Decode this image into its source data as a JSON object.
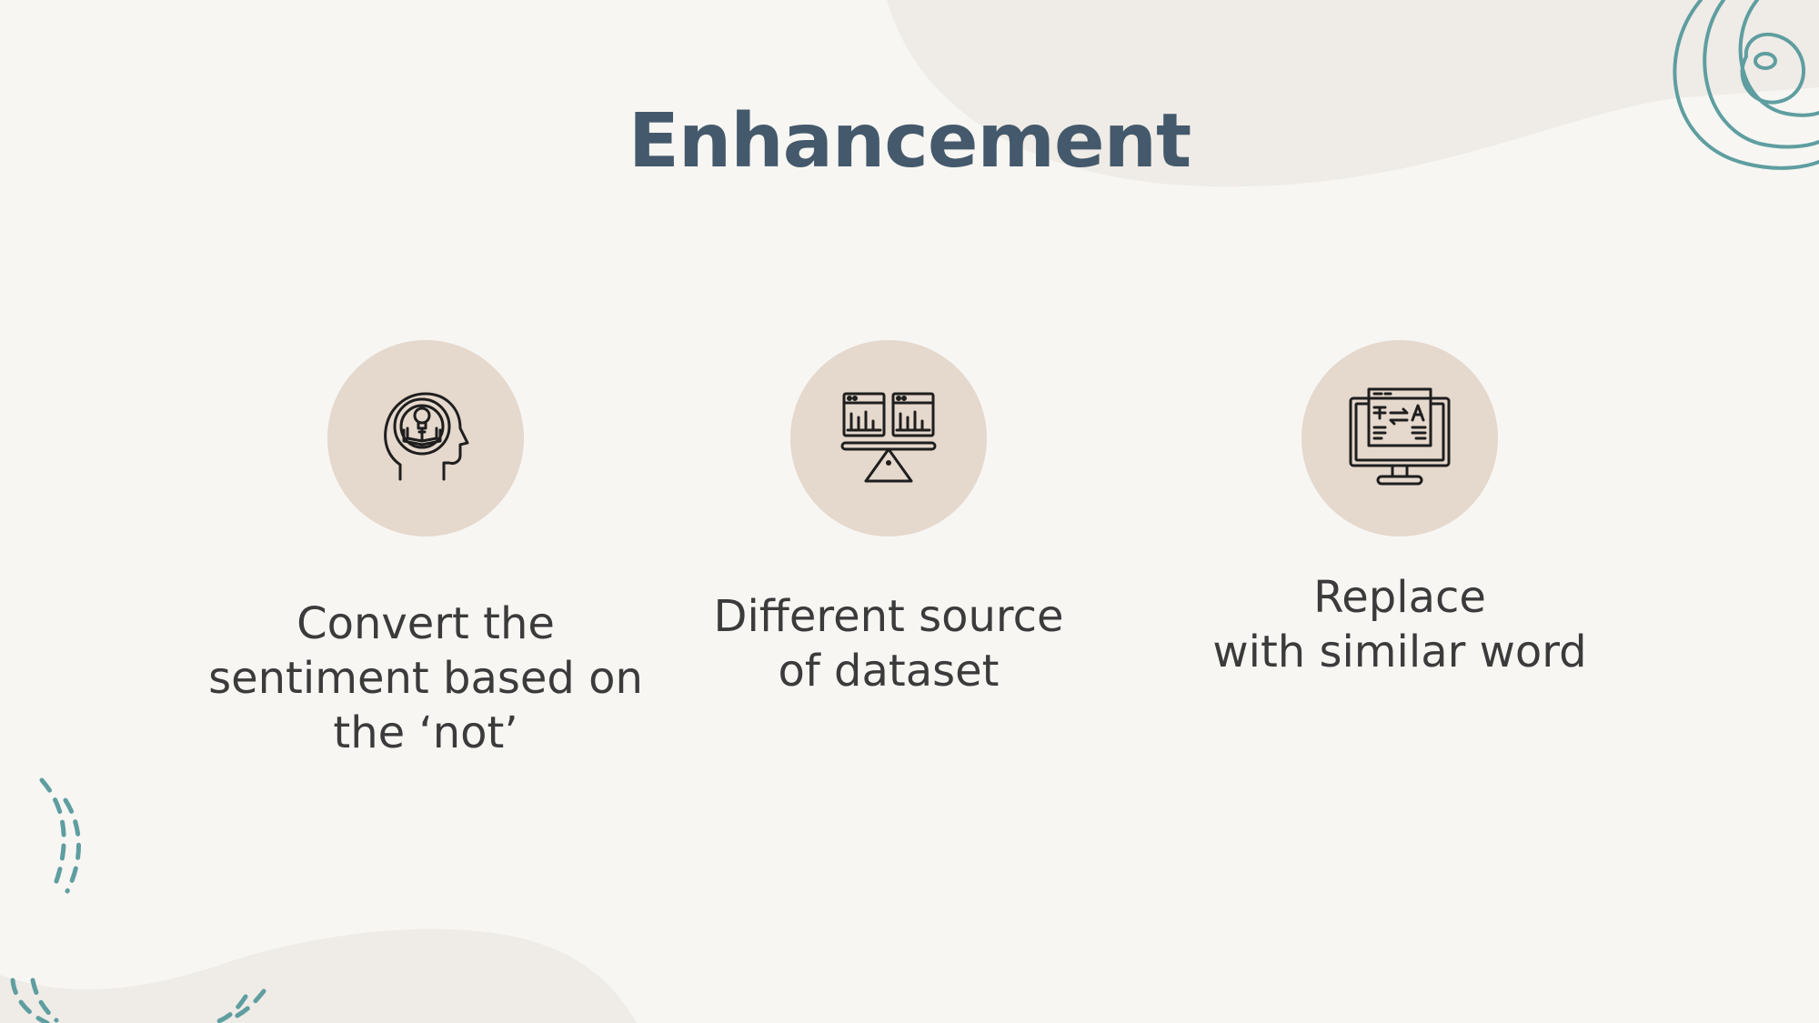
{
  "slide": {
    "title": "Enhancement",
    "items": [
      {
        "icon": "head-lightbulb-book-icon",
        "text": "Convert the\nsentiment based on\nthe ‘not’"
      },
      {
        "icon": "balance-scale-charts-icon",
        "text": "Different source\nof dataset"
      },
      {
        "icon": "monitor-translate-icon",
        "text": "Replace\nwith similar word"
      }
    ]
  },
  "colors": {
    "background": "#f7f6f3",
    "title": "#44596b",
    "circle": "#e5d8cc",
    "blob": "#efebe6",
    "accent": "#5f9ea0",
    "text": "#3b3b3b"
  }
}
